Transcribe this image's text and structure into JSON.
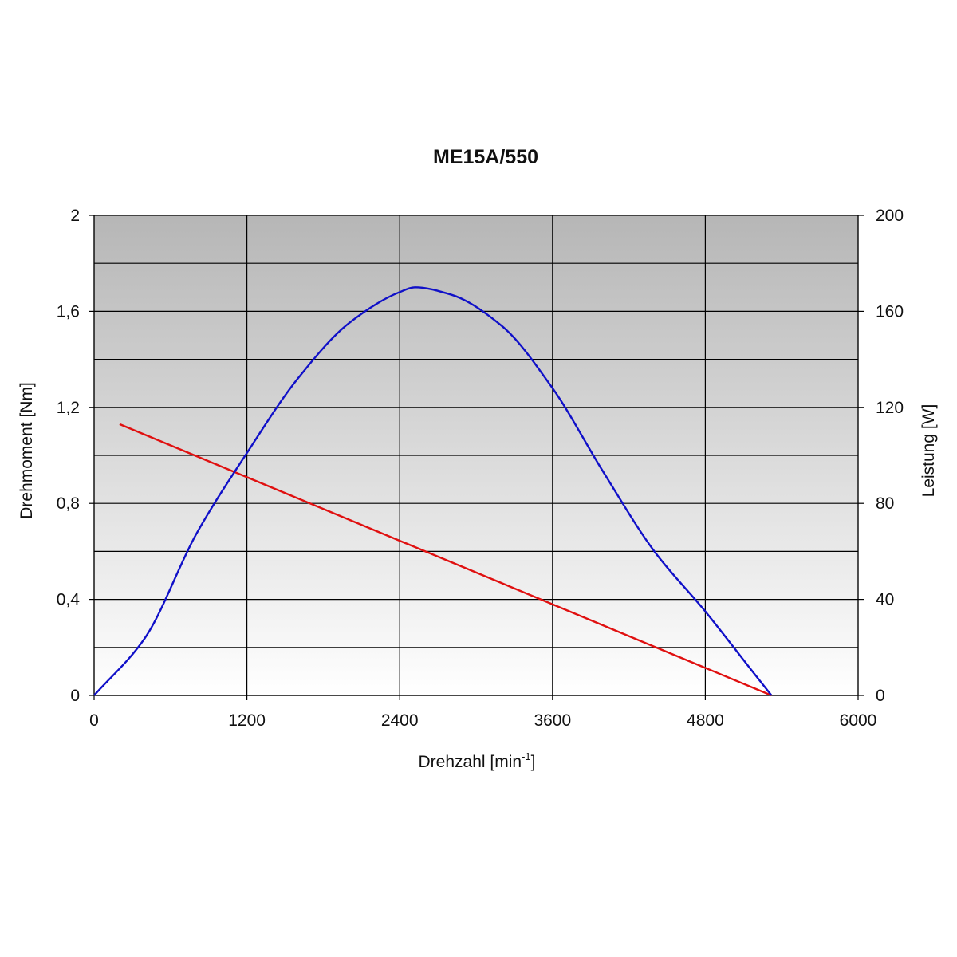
{
  "chart_data": {
    "type": "line",
    "title": "ME15A/550",
    "xlabel": {
      "base": "Drehzahl [min",
      "sup": "-1",
      "end": "]"
    },
    "ylabel_left": "Drehmoment [Nm]",
    "ylabel_right": "Leistung [W]",
    "xlim": [
      0,
      6000
    ],
    "ylim_left": [
      0,
      2
    ],
    "ylim_right": [
      0,
      200
    ],
    "x_ticks": [
      "0",
      "1200",
      "2400",
      "3600",
      "4800",
      "6000"
    ],
    "y_left_ticks": [
      "0",
      "0,4",
      "0,8",
      "1,2",
      "1,6",
      "2"
    ],
    "y_right_ticks": [
      "0",
      "40",
      "80",
      "120",
      "160",
      "200"
    ],
    "grid": true,
    "series": [
      {
        "axis": "left",
        "color": "#e01010",
        "x": [
          200,
          5320
        ],
        "y": [
          1.13,
          0.0
        ]
      },
      {
        "axis": "right",
        "color": "#1010c8",
        "x": [
          0,
          400,
          800,
          1200,
          1600,
          2000,
          2400,
          2520,
          2800,
          3200,
          3600,
          4000,
          4400,
          4800,
          5200,
          5320
        ],
        "y": [
          0,
          24,
          67,
          101,
          132,
          155,
          168,
          170,
          167,
          154,
          128,
          93,
          60,
          35,
          8,
          0
        ]
      }
    ],
    "colors": {
      "background_top": "#b6b6b6",
      "background_bottom": "#ffffff"
    }
  }
}
